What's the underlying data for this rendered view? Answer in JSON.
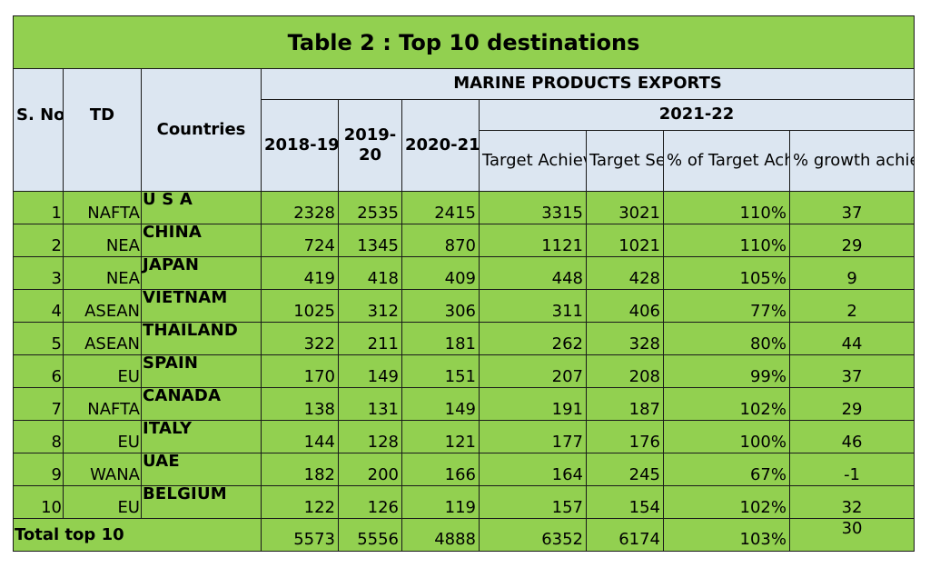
{
  "title": "Table 2 : Top 10 destinations",
  "header": {
    "sno": "S. No",
    "td": "TD",
    "countries": "Countries",
    "band": "MARINE PRODUCTS EXPORTS",
    "y2018": "2018-19",
    "y2019": "2019-20",
    "y2020": "2020-21",
    "y2021": "2021-22",
    "target_achieved": "Target Achieved",
    "target_set": "Target Set",
    "pct_target": "% of Target Achieved",
    "pct_growth": "% growth achieved"
  },
  "rows": [
    {
      "sno": "1",
      "td": "NAFTA",
      "country": "U S A",
      "y2018": "2328",
      "y2019": "2535",
      "y2020": "2415",
      "achieved": "3315",
      "set": "3021",
      "pct": "110%",
      "growth": "37"
    },
    {
      "sno": "2",
      "td": "NEA",
      "country": "CHINA",
      "y2018": "724",
      "y2019": "1345",
      "y2020": "870",
      "achieved": "1121",
      "set": "1021",
      "pct": "110%",
      "growth": "29"
    },
    {
      "sno": "3",
      "td": "NEA",
      "country": "JAPAN",
      "y2018": "419",
      "y2019": "418",
      "y2020": "409",
      "achieved": "448",
      "set": "428",
      "pct": "105%",
      "growth": "9"
    },
    {
      "sno": "4",
      "td": "ASEAN",
      "country": "VIETNAM",
      "y2018": "1025",
      "y2019": "312",
      "y2020": "306",
      "achieved": "311",
      "set": "406",
      "pct": "77%",
      "growth": "2"
    },
    {
      "sno": "5",
      "td": "ASEAN",
      "country": "THAILAND",
      "y2018": "322",
      "y2019": "211",
      "y2020": "181",
      "achieved": "262",
      "set": "328",
      "pct": "80%",
      "growth": "44"
    },
    {
      "sno": "6",
      "td": "EU",
      "country": "SPAIN",
      "y2018": "170",
      "y2019": "149",
      "y2020": "151",
      "achieved": "207",
      "set": "208",
      "pct": "99%",
      "growth": "37"
    },
    {
      "sno": "7",
      "td": "NAFTA",
      "country": "CANADA",
      "y2018": "138",
      "y2019": "131",
      "y2020": "149",
      "achieved": "191",
      "set": "187",
      "pct": "102%",
      "growth": "29"
    },
    {
      "sno": "8",
      "td": "EU",
      "country": "ITALY",
      "y2018": "144",
      "y2019": "128",
      "y2020": "121",
      "achieved": "177",
      "set": "176",
      "pct": "100%",
      "growth": "46"
    },
    {
      "sno": "9",
      "td": "WANA",
      "country": "UAE",
      "y2018": "182",
      "y2019": "200",
      "y2020": "166",
      "achieved": "164",
      "set": "245",
      "pct": "67%",
      "growth": "-1"
    },
    {
      "sno": "10",
      "td": "EU",
      "country": "BELGIUM",
      "y2018": "122",
      "y2019": "126",
      "y2020": "119",
      "achieved": "157",
      "set": "154",
      "pct": "102%",
      "growth": "32"
    }
  ],
  "total": {
    "label": "Total top 10",
    "y2018": "5573",
    "y2019": "5556",
    "y2020": "4888",
    "achieved": "6352",
    "set": "6174",
    "pct": "103%",
    "growth": "30"
  },
  "colors": {
    "green": "#92d050",
    "header_blue": "#dce6f1"
  }
}
